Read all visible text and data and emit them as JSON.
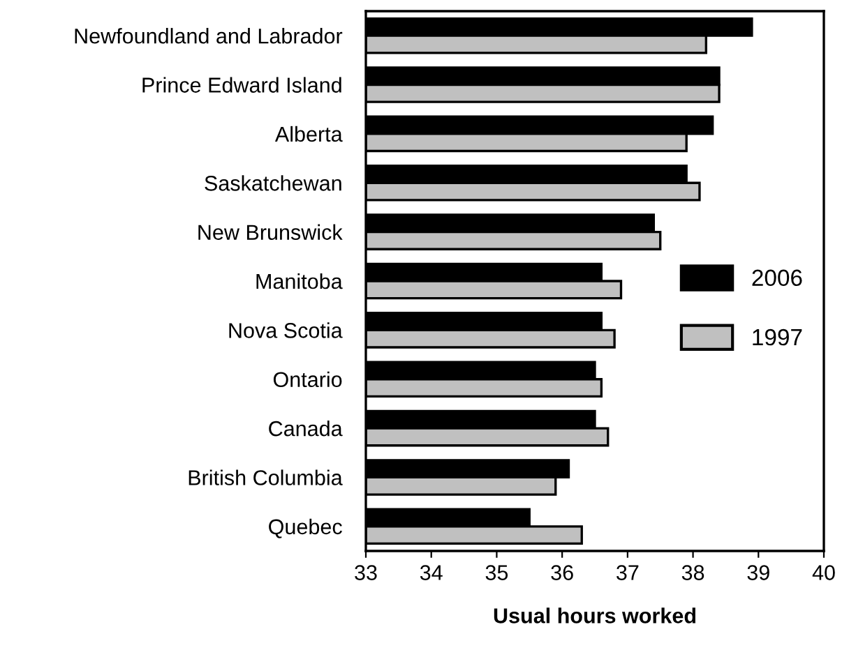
{
  "chart_data": {
    "type": "bar",
    "orientation": "horizontal",
    "xlabel": "Usual hours worked",
    "categories": [
      "Newfoundland and Labrador",
      "Prince Edward Island",
      "Alberta",
      "Saskatchewan",
      "New Brunswick",
      "Manitoba",
      "Nova Scotia",
      "Ontario",
      "Canada",
      "British Columbia",
      "Quebec"
    ],
    "series": [
      {
        "name": "2006",
        "color": "#000000",
        "values": [
          38.9,
          38.4,
          38.3,
          37.9,
          37.4,
          36.6,
          36.6,
          36.5,
          36.5,
          36.1,
          35.5
        ]
      },
      {
        "name": "1997",
        "color": "#c0c0c0",
        "values": [
          38.2,
          38.4,
          37.9,
          38.1,
          37.5,
          36.9,
          36.8,
          36.6,
          36.7,
          35.9,
          36.3
        ]
      }
    ],
    "xlim": [
      33,
      40
    ],
    "xticks": [
      33,
      34,
      35,
      36,
      37,
      38,
      39,
      40
    ],
    "grid": false,
    "legend": "right"
  }
}
